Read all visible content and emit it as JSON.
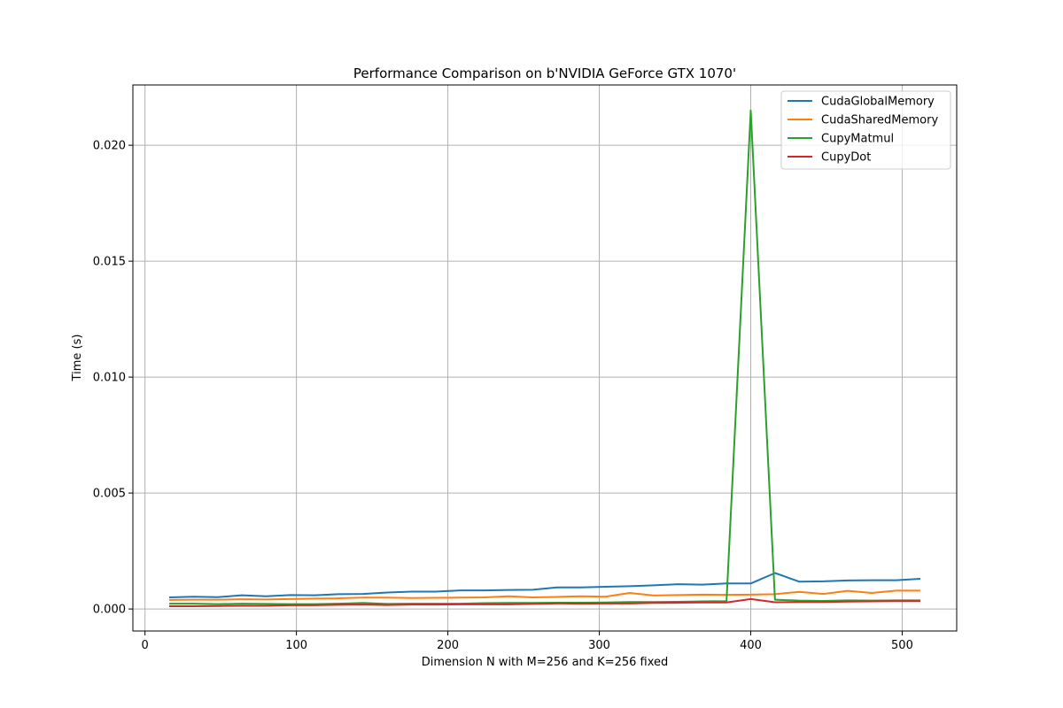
{
  "chart_data": {
    "type": "line",
    "title": "Performance Comparison on b'NVIDIA GeForce GTX 1070'",
    "xlabel": "Dimension N with M=256 and K=256 fixed",
    "ylabel": "Time (s)",
    "xlim": [
      -8,
      536
    ],
    "ylim": [
      -0.00095,
      0.0226
    ],
    "xticks": [
      0,
      100,
      200,
      300,
      400,
      500
    ],
    "xtick_labels": [
      "0",
      "100",
      "200",
      "300",
      "400",
      "500"
    ],
    "yticks": [
      0.0,
      0.005,
      0.01,
      0.015,
      0.02
    ],
    "ytick_labels": [
      "0.000",
      "0.005",
      "0.010",
      "0.015",
      "0.020"
    ],
    "grid": true,
    "legend_position": "top-right",
    "x": [
      16,
      32,
      48,
      64,
      80,
      96,
      112,
      128,
      144,
      160,
      176,
      192,
      208,
      224,
      240,
      256,
      272,
      288,
      304,
      320,
      336,
      352,
      368,
      384,
      400,
      416,
      432,
      448,
      464,
      480,
      496,
      512
    ],
    "series": [
      {
        "name": "CudaGlobalMemory",
        "color": "#1f77b4",
        "values": [
          0.0005,
          0.00053,
          0.00051,
          0.00059,
          0.00055,
          0.0006,
          0.00059,
          0.00064,
          0.00065,
          0.00071,
          0.00075,
          0.00075,
          0.0008,
          0.0008,
          0.00082,
          0.00083,
          0.00093,
          0.00093,
          0.00096,
          0.00098,
          0.00102,
          0.00107,
          0.00105,
          0.0011,
          0.0011,
          0.00155,
          0.00118,
          0.00119,
          0.00123,
          0.00124,
          0.00124,
          0.0013
        ]
      },
      {
        "name": "CudaSharedMemory",
        "color": "#ff7f0e",
        "values": [
          0.00039,
          0.0004,
          0.0004,
          0.00042,
          0.00041,
          0.00043,
          0.00045,
          0.00046,
          0.00049,
          0.00049,
          0.00047,
          0.00048,
          0.00049,
          0.0005,
          0.00055,
          0.0005,
          0.00052,
          0.00055,
          0.00053,
          0.00069,
          0.00058,
          0.0006,
          0.00062,
          0.00061,
          0.00062,
          0.00064,
          0.00074,
          0.00065,
          0.00078,
          0.00069,
          0.00079,
          0.00079
        ]
      },
      {
        "name": "CupyMatmul",
        "color": "#2ca02c",
        "values": [
          0.00023,
          0.00023,
          0.00021,
          0.00023,
          0.00022,
          0.00021,
          0.00021,
          0.00023,
          0.00026,
          0.00022,
          0.00023,
          0.00023,
          0.00023,
          0.00025,
          0.00026,
          0.00026,
          0.00027,
          0.00027,
          0.00028,
          0.0003,
          0.0003,
          0.00031,
          0.00033,
          0.00034,
          0.0215,
          0.0004,
          0.00036,
          0.00035,
          0.00037,
          0.00036,
          0.00037,
          0.00037
        ]
      },
      {
        "name": "CupyDot",
        "color": "#d62728",
        "values": [
          0.00012,
          0.00012,
          0.00013,
          0.00014,
          0.00014,
          0.00016,
          0.00016,
          0.00018,
          0.00019,
          0.00017,
          0.00019,
          0.00019,
          0.0002,
          0.0002,
          0.0002,
          0.00022,
          0.00024,
          0.00023,
          0.00024,
          0.00024,
          0.00026,
          0.00027,
          0.00028,
          0.00028,
          0.00043,
          0.00029,
          0.0003,
          0.0003,
          0.00032,
          0.00033,
          0.00034,
          0.00034
        ]
      }
    ]
  }
}
